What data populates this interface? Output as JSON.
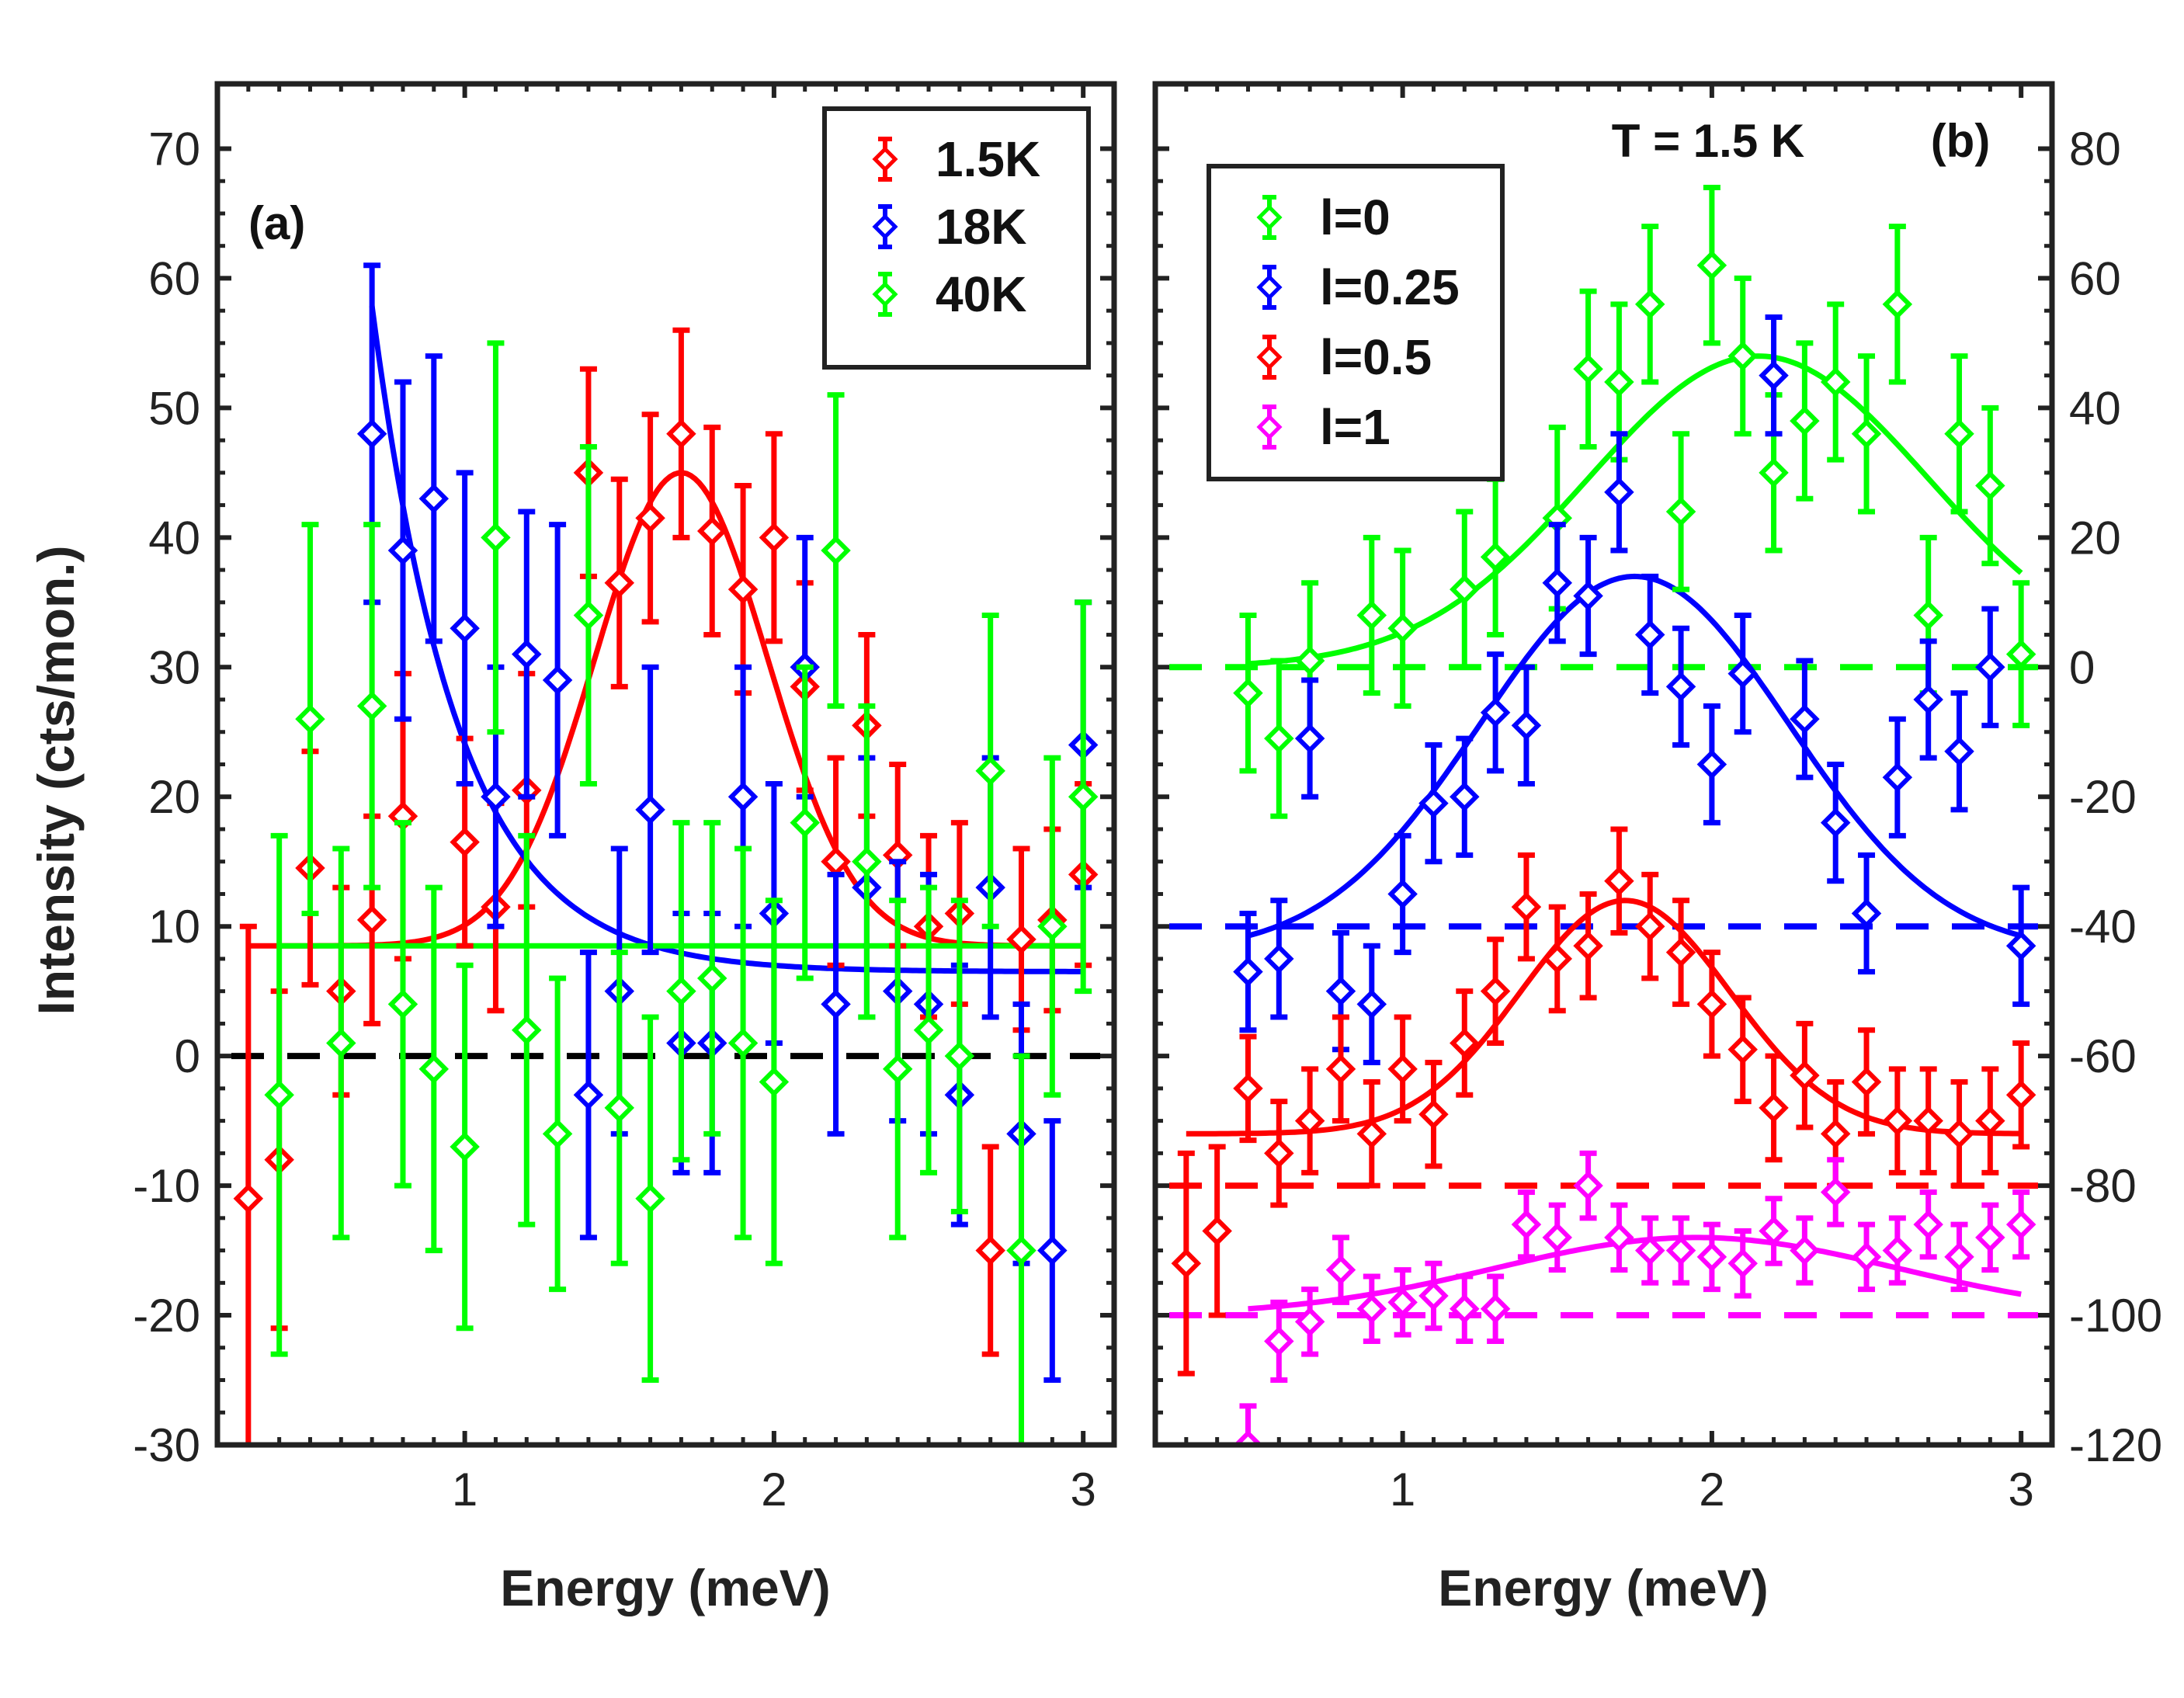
{
  "figure": {
    "ylabel": "Intensity (cts/mon.)"
  },
  "chart_data": [
    {
      "type": "scatter",
      "panel_label": "(a)",
      "xlabel": "Energy (meV)",
      "ylabel": "Intensity (cts/mon.)",
      "xlim": [
        0.2,
        3.1
      ],
      "ylim": [
        -30,
        75
      ],
      "xticks": [
        1,
        2,
        3
      ],
      "yticks": [
        -30,
        -20,
        -10,
        0,
        10,
        20,
        30,
        40,
        50,
        60,
        70
      ],
      "ytick_side": "left",
      "legend_position": "top-right",
      "reference_lines": [
        {
          "y": 0,
          "color": "#000000",
          "style": "dashed"
        }
      ],
      "series": [
        {
          "name": "1.5K",
          "color": "#ff0000",
          "x": [
            0.3,
            0.4,
            0.5,
            0.6,
            0.7,
            0.8,
            1.0,
            1.1,
            1.2,
            1.4,
            1.5,
            1.6,
            1.7,
            1.8,
            1.9,
            2.0,
            2.1,
            2.2,
            2.3,
            2.4,
            2.5,
            2.6,
            2.7,
            2.8,
            2.9,
            3.0
          ],
          "y": [
            -11,
            -8,
            14.5,
            5,
            10.5,
            18.5,
            16.5,
            11.5,
            20.5,
            45,
            36.5,
            41.5,
            48,
            40.5,
            36,
            40,
            28.5,
            15,
            25.5,
            15.5,
            10,
            11,
            -15,
            9,
            10.5,
            14
          ],
          "err": [
            21,
            13,
            9,
            8,
            8,
            11,
            8,
            8,
            9,
            8,
            8,
            8,
            8,
            8,
            8,
            8,
            8,
            8,
            7,
            7,
            7,
            7,
            8,
            7,
            7,
            7
          ],
          "fit": {
            "model": "gaussian",
            "offset": 8.5,
            "amplitude": 36.5,
            "center": 1.7,
            "sigma": 0.28
          }
        },
        {
          "name": "18K",
          "color": "#0000ff",
          "x": [
            0.7,
            0.8,
            0.9,
            1.0,
            1.1,
            1.2,
            1.3,
            1.4,
            1.5,
            1.6,
            1.7,
            1.8,
            1.9,
            2.0,
            2.1,
            2.2,
            2.3,
            2.4,
            2.5,
            2.6,
            2.7,
            2.8,
            2.9,
            3.0
          ],
          "y": [
            48,
            39,
            43,
            33,
            20,
            31,
            29,
            -3,
            5,
            19,
            1,
            1,
            20,
            11,
            30,
            4,
            13,
            5,
            4,
            -3,
            13,
            -6,
            -15,
            24
          ],
          "err": [
            13,
            13,
            11,
            12,
            10,
            11,
            12,
            11,
            11,
            11,
            10,
            10,
            10,
            10,
            10,
            10,
            10,
            10,
            10,
            10,
            10,
            10,
            10,
            11
          ],
          "fit": {
            "model": "exponential-decay",
            "offset": 6.5,
            "amplitude": 150,
            "center": 0.4,
            "decay": 0.28
          }
        },
        {
          "name": "40K",
          "color": "#00ff00",
          "x": [
            0.4,
            0.5,
            0.6,
            0.7,
            0.8,
            0.9,
            1.0,
            1.1,
            1.2,
            1.3,
            1.4,
            1.5,
            1.6,
            1.7,
            1.8,
            1.9,
            2.0,
            2.1,
            2.2,
            2.3,
            2.4,
            2.5,
            2.6,
            2.7,
            2.8,
            2.9,
            3.0
          ],
          "y": [
            -3,
            26,
            1,
            27,
            4,
            -1,
            -7,
            40,
            2,
            -6,
            34,
            -4,
            -11,
            5,
            6,
            1,
            -2,
            18,
            39,
            15,
            -1,
            2,
            0,
            22,
            -15,
            10,
            20
          ],
          "err": [
            20,
            15,
            15,
            14,
            14,
            14,
            14,
            15,
            15,
            12,
            13,
            12,
            14,
            13,
            12,
            15,
            14,
            12,
            12,
            12,
            13,
            11,
            12,
            12,
            15,
            13,
            15
          ],
          "fit": {
            "model": "constant",
            "offset": 8.5
          }
        }
      ]
    },
    {
      "type": "scatter",
      "panel_label": "(b)",
      "annotation": "T = 1.5 K",
      "xlabel": "Energy (meV)",
      "xlim": [
        0.2,
        3.1
      ],
      "ylim": [
        -120,
        90
      ],
      "xticks": [
        1,
        2,
        3
      ],
      "yticks": [
        -120,
        -100,
        -80,
        -60,
        -40,
        -20,
        0,
        20,
        40,
        60,
        80
      ],
      "ytick_side": "right",
      "legend_position": "top-left",
      "reference_lines": [
        {
          "y": 0,
          "color": "#00ff00",
          "style": "dashed"
        },
        {
          "y": -40,
          "color": "#0000ff",
          "style": "dashed"
        },
        {
          "y": -80,
          "color": "#ff0000",
          "style": "dashed"
        },
        {
          "y": -100,
          "color": "#ff00ff",
          "style": "dashed"
        }
      ],
      "series": [
        {
          "name": "l=0",
          "color": "#00ff00",
          "x": [
            0.5,
            0.6,
            0.7,
            0.9,
            1.0,
            1.2,
            1.3,
            1.5,
            1.6,
            1.7,
            1.8,
            1.9,
            2.0,
            2.1,
            2.2,
            2.3,
            2.4,
            2.5,
            2.6,
            2.7,
            2.8,
            2.9,
            3.0
          ],
          "y": [
            -4,
            -11,
            1,
            8,
            6,
            12,
            17,
            23,
            46,
            44,
            56,
            24,
            62,
            48,
            30,
            38,
            44,
            36,
            56,
            8,
            36,
            28,
            2
          ],
          "err": [
            12,
            12,
            12,
            12,
            12,
            12,
            12,
            14,
            12,
            12,
            12,
            12,
            12,
            12,
            12,
            12,
            12,
            12,
            12,
            12,
            12,
            12,
            11
          ],
          "fit": {
            "model": "gaussian",
            "offset": 0,
            "amplitude": 48,
            "center": 2.15,
            "sigma": 0.55
          }
        },
        {
          "name": "l=0.25",
          "color": "#0000ff",
          "x": [
            0.5,
            0.6,
            0.7,
            0.8,
            0.9,
            1.0,
            1.1,
            1.2,
            1.3,
            1.4,
            1.5,
            1.6,
            1.7,
            1.8,
            1.9,
            2.0,
            2.1,
            2.2,
            2.3,
            2.4,
            2.5,
            2.6,
            2.7,
            2.8,
            2.9,
            3.0
          ],
          "y": [
            -47,
            -45,
            -11,
            -50,
            -52,
            -35,
            -21,
            -20,
            -7,
            -9,
            13,
            11,
            27,
            5,
            -3,
            -15,
            -1,
            45,
            -8,
            -24,
            -38,
            -17,
            -5,
            -13,
            0,
            -43
          ],
          "err": [
            9,
            9,
            9,
            9,
            9,
            9,
            9,
            9,
            9,
            9,
            9,
            9,
            9,
            9,
            9,
            9,
            9,
            9,
            9,
            9,
            9,
            9,
            9,
            9,
            9,
            9
          ],
          "fit": {
            "model": "gaussian",
            "offset": -44,
            "amplitude": 58,
            "center": 1.75,
            "sigma": 0.5
          }
        },
        {
          "name": "l=0.5",
          "color": "#ff0000",
          "x": [
            0.3,
            0.4,
            0.5,
            0.6,
            0.7,
            0.8,
            0.9,
            1.0,
            1.1,
            1.2,
            1.3,
            1.4,
            1.5,
            1.6,
            1.7,
            1.8,
            1.9,
            2.0,
            2.1,
            2.2,
            2.3,
            2.4,
            2.5,
            2.6,
            2.7,
            2.8,
            2.9,
            3.0
          ],
          "y": [
            -92,
            -87,
            -65,
            -75,
            -70,
            -62,
            -72,
            -62,
            -69,
            -58,
            -50,
            -37,
            -45,
            -43,
            -33,
            -40,
            -44,
            -52,
            -59,
            -68,
            -63,
            -72,
            -64,
            -70,
            -70,
            -72,
            -70,
            -66
          ],
          "err": [
            17,
            13,
            8,
            8,
            8,
            8,
            8,
            8,
            8,
            8,
            8,
            8,
            8,
            8,
            8,
            8,
            8,
            8,
            8,
            8,
            8,
            8,
            8,
            8,
            8,
            8,
            8,
            8
          ],
          "fit": {
            "model": "gaussian",
            "offset": -72,
            "amplitude": 36,
            "center": 1.72,
            "sigma": 0.34
          }
        },
        {
          "name": "l=1",
          "color": "#ff00ff",
          "x": [
            0.5,
            0.6,
            0.7,
            0.8,
            0.9,
            1.0,
            1.1,
            1.2,
            1.3,
            1.4,
            1.5,
            1.6,
            1.7,
            1.8,
            1.9,
            2.0,
            2.1,
            2.2,
            2.3,
            2.4,
            2.5,
            2.6,
            2.7,
            2.8,
            2.9,
            3.0
          ],
          "y": [
            -120,
            -104,
            -101,
            -93,
            -99,
            -98,
            -97,
            -99,
            -99,
            -86,
            -88,
            -80,
            -88,
            -90,
            -90,
            -91,
            -92,
            -87,
            -90,
            -81,
            -91,
            -90,
            -86,
            -91,
            -88,
            -86
          ],
          "err": [
            6,
            6,
            5,
            5,
            5,
            5,
            5,
            5,
            5,
            5,
            5,
            5,
            5,
            5,
            5,
            5,
            5,
            5,
            5,
            5,
            5,
            5,
            5,
            5,
            5,
            5
          ],
          "fit": {
            "model": "gaussian",
            "offset": -100,
            "amplitude": 12,
            "center": 1.95,
            "sigma": 0.65
          }
        }
      ]
    }
  ]
}
